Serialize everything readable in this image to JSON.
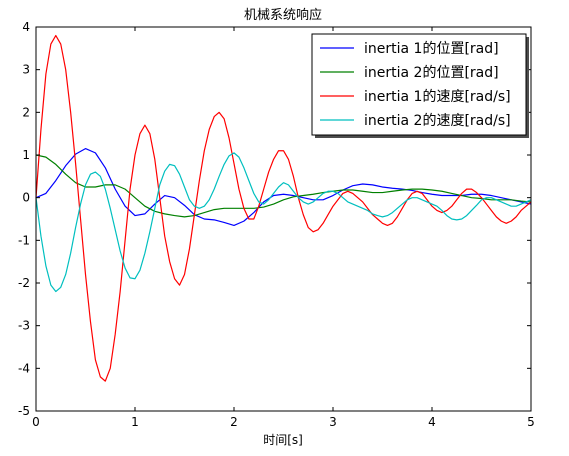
{
  "chart_data": {
    "type": "line",
    "title": "机械系统响应",
    "xlabel": "时间[s]",
    "ylabel": "",
    "xlim": [
      0,
      5
    ],
    "ylim": [
      -5,
      4
    ],
    "x_ticks": [
      "0",
      "1",
      "2",
      "3",
      "4",
      "5"
    ],
    "y_ticks": [
      "4",
      "3",
      "2",
      "1",
      "0",
      "-1",
      "-2",
      "-3",
      "-4",
      "-5"
    ],
    "grid": false,
    "legend_position": "top-right",
    "series": [
      {
        "name": "inertia 1的位置[rad]",
        "color": "#0000ff",
        "x": [
          0,
          0.1,
          0.2,
          0.3,
          0.4,
          0.5,
          0.6,
          0.7,
          0.8,
          0.9,
          1.0,
          1.1,
          1.2,
          1.3,
          1.4,
          1.5,
          1.6,
          1.7,
          1.8,
          1.9,
          2.0,
          2.1,
          2.2,
          2.3,
          2.4,
          2.5,
          2.6,
          2.7,
          2.8,
          2.9,
          3.0,
          3.1,
          3.2,
          3.3,
          3.4,
          3.5,
          3.6,
          3.7,
          3.8,
          3.9,
          4.0,
          4.1,
          4.2,
          4.3,
          4.4,
          4.5,
          4.6,
          4.7,
          4.8,
          4.9,
          5.0
        ],
        "y": [
          0,
          0.1,
          0.4,
          0.75,
          1.02,
          1.15,
          1.05,
          0.7,
          0.2,
          -0.2,
          -0.42,
          -0.38,
          -0.15,
          0.05,
          0.0,
          -0.18,
          -0.4,
          -0.5,
          -0.52,
          -0.58,
          -0.65,
          -0.55,
          -0.35,
          -0.1,
          0.05,
          0.08,
          0.05,
          0.0,
          -0.05,
          -0.05,
          0.05,
          0.18,
          0.28,
          0.32,
          0.3,
          0.25,
          0.22,
          0.2,
          0.17,
          0.12,
          0.08,
          0.05,
          0.05,
          0.05,
          0.08,
          0.08,
          0.05,
          0.0,
          -0.05,
          -0.1,
          -0.15
        ]
      },
      {
        "name": "inertia 2的位置[rad]",
        "color": "#008000",
        "x": [
          0,
          0.1,
          0.2,
          0.3,
          0.4,
          0.5,
          0.6,
          0.7,
          0.8,
          0.9,
          1.0,
          1.1,
          1.2,
          1.3,
          1.4,
          1.5,
          1.6,
          1.7,
          1.8,
          1.9,
          2.0,
          2.1,
          2.2,
          2.3,
          2.4,
          2.5,
          2.6,
          2.7,
          2.8,
          2.9,
          3.0,
          3.1,
          3.2,
          3.3,
          3.4,
          3.5,
          3.6,
          3.7,
          3.8,
          3.9,
          4.0,
          4.1,
          4.2,
          4.3,
          4.4,
          4.5,
          4.6,
          4.7,
          4.8,
          4.9,
          5.0
        ],
        "y": [
          1.0,
          0.95,
          0.78,
          0.55,
          0.35,
          0.25,
          0.25,
          0.3,
          0.3,
          0.2,
          0.0,
          -0.2,
          -0.32,
          -0.38,
          -0.42,
          -0.45,
          -0.42,
          -0.35,
          -0.28,
          -0.25,
          -0.25,
          -0.25,
          -0.25,
          -0.22,
          -0.15,
          -0.05,
          0.02,
          0.05,
          0.08,
          0.12,
          0.15,
          0.18,
          0.18,
          0.15,
          0.12,
          0.12,
          0.15,
          0.18,
          0.2,
          0.2,
          0.18,
          0.15,
          0.1,
          0.05,
          0.0,
          -0.02,
          -0.05,
          -0.05,
          -0.05,
          -0.08,
          -0.1
        ]
      },
      {
        "name": "inertia 1的速度[rad/s]",
        "color": "#ff0000",
        "x": [
          0,
          0.05,
          0.1,
          0.15,
          0.2,
          0.25,
          0.3,
          0.35,
          0.4,
          0.45,
          0.5,
          0.55,
          0.6,
          0.65,
          0.7,
          0.75,
          0.8,
          0.85,
          0.9,
          0.95,
          1.0,
          1.05,
          1.1,
          1.15,
          1.2,
          1.25,
          1.3,
          1.35,
          1.4,
          1.45,
          1.5,
          1.55,
          1.6,
          1.65,
          1.7,
          1.75,
          1.8,
          1.85,
          1.9,
          1.95,
          2.0,
          2.05,
          2.1,
          2.15,
          2.2,
          2.25,
          2.3,
          2.35,
          2.4,
          2.45,
          2.5,
          2.55,
          2.6,
          2.65,
          2.7,
          2.75,
          2.8,
          2.85,
          2.9,
          2.95,
          3.0,
          3.05,
          3.1,
          3.15,
          3.2,
          3.25,
          3.3,
          3.35,
          3.4,
          3.45,
          3.5,
          3.55,
          3.6,
          3.65,
          3.7,
          3.75,
          3.8,
          3.85,
          3.9,
          3.95,
          4.0,
          4.05,
          4.1,
          4.15,
          4.2,
          4.25,
          4.3,
          4.35,
          4.4,
          4.45,
          4.5,
          4.55,
          4.6,
          4.65,
          4.7,
          4.75,
          4.8,
          4.85,
          4.9,
          4.95,
          5.0
        ],
        "y": [
          0,
          1.6,
          2.9,
          3.6,
          3.8,
          3.6,
          3.0,
          2.0,
          0.8,
          -0.5,
          -1.8,
          -2.9,
          -3.8,
          -4.2,
          -4.3,
          -4.0,
          -3.2,
          -2.2,
          -1.0,
          0.2,
          1.0,
          1.5,
          1.7,
          1.5,
          0.9,
          0.0,
          -0.9,
          -1.5,
          -1.9,
          -2.05,
          -1.8,
          -1.2,
          -0.4,
          0.4,
          1.1,
          1.6,
          1.9,
          2.0,
          1.85,
          1.4,
          0.8,
          0.2,
          -0.25,
          -0.5,
          -0.5,
          -0.2,
          0.2,
          0.6,
          0.9,
          1.1,
          1.1,
          0.9,
          0.5,
          0.0,
          -0.4,
          -0.7,
          -0.8,
          -0.75,
          -0.6,
          -0.4,
          -0.2,
          -0.05,
          0.1,
          0.15,
          0.1,
          0.0,
          -0.1,
          -0.25,
          -0.4,
          -0.5,
          -0.6,
          -0.65,
          -0.6,
          -0.45,
          -0.25,
          -0.05,
          0.1,
          0.15,
          0.1,
          -0.05,
          -0.2,
          -0.3,
          -0.35,
          -0.3,
          -0.2,
          -0.05,
          0.1,
          0.2,
          0.2,
          0.12,
          0.0,
          -0.15,
          -0.3,
          -0.45,
          -0.55,
          -0.6,
          -0.55,
          -0.45,
          -0.3,
          -0.2,
          -0.1
        ]
      },
      {
        "name": "inertia 2的速度[rad/s]",
        "color": "#00bfbf",
        "x": [
          0,
          0.05,
          0.1,
          0.15,
          0.2,
          0.25,
          0.3,
          0.35,
          0.4,
          0.45,
          0.5,
          0.55,
          0.6,
          0.65,
          0.7,
          0.75,
          0.8,
          0.85,
          0.9,
          0.95,
          1.0,
          1.05,
          1.1,
          1.15,
          1.2,
          1.25,
          1.3,
          1.35,
          1.4,
          1.45,
          1.5,
          1.55,
          1.6,
          1.65,
          1.7,
          1.75,
          1.8,
          1.85,
          1.9,
          1.95,
          2.0,
          2.05,
          2.1,
          2.15,
          2.2,
          2.25,
          2.3,
          2.35,
          2.4,
          2.45,
          2.5,
          2.55,
          2.6,
          2.65,
          2.7,
          2.75,
          2.8,
          2.85,
          2.9,
          2.95,
          3.0,
          3.05,
          3.1,
          3.15,
          3.2,
          3.25,
          3.3,
          3.35,
          3.4,
          3.45,
          3.5,
          3.55,
          3.6,
          3.65,
          3.7,
          3.75,
          3.8,
          3.85,
          3.9,
          3.95,
          4.0,
          4.05,
          4.1,
          4.15,
          4.2,
          4.25,
          4.3,
          4.35,
          4.4,
          4.45,
          4.5,
          4.55,
          4.6,
          4.65,
          4.7,
          4.75,
          4.8,
          4.85,
          4.9,
          4.95,
          5.0
        ],
        "y": [
          0,
          -0.9,
          -1.6,
          -2.05,
          -2.2,
          -2.1,
          -1.8,
          -1.3,
          -0.7,
          -0.15,
          0.3,
          0.55,
          0.6,
          0.5,
          0.2,
          -0.25,
          -0.75,
          -1.25,
          -1.65,
          -1.88,
          -1.9,
          -1.7,
          -1.3,
          -0.8,
          -0.25,
          0.3,
          0.62,
          0.78,
          0.75,
          0.55,
          0.25,
          -0.05,
          -0.2,
          -0.25,
          -0.2,
          -0.05,
          0.2,
          0.5,
          0.78,
          0.98,
          1.05,
          0.95,
          0.7,
          0.4,
          0.1,
          -0.1,
          -0.15,
          -0.05,
          0.1,
          0.25,
          0.35,
          0.3,
          0.15,
          0.0,
          -0.1,
          -0.15,
          -0.1,
          0.0,
          0.1,
          0.15,
          0.15,
          0.1,
          0.0,
          -0.1,
          -0.15,
          -0.2,
          -0.25,
          -0.3,
          -0.38,
          -0.42,
          -0.45,
          -0.42,
          -0.35,
          -0.25,
          -0.15,
          -0.05,
          0.0,
          0.0,
          -0.05,
          -0.1,
          -0.15,
          -0.2,
          -0.3,
          -0.42,
          -0.5,
          -0.52,
          -0.5,
          -0.42,
          -0.3,
          -0.18,
          -0.05,
          0.0,
          0.0,
          -0.05,
          -0.1,
          -0.15,
          -0.2,
          -0.2,
          -0.15,
          -0.1,
          -0.05
        ]
      }
    ]
  }
}
